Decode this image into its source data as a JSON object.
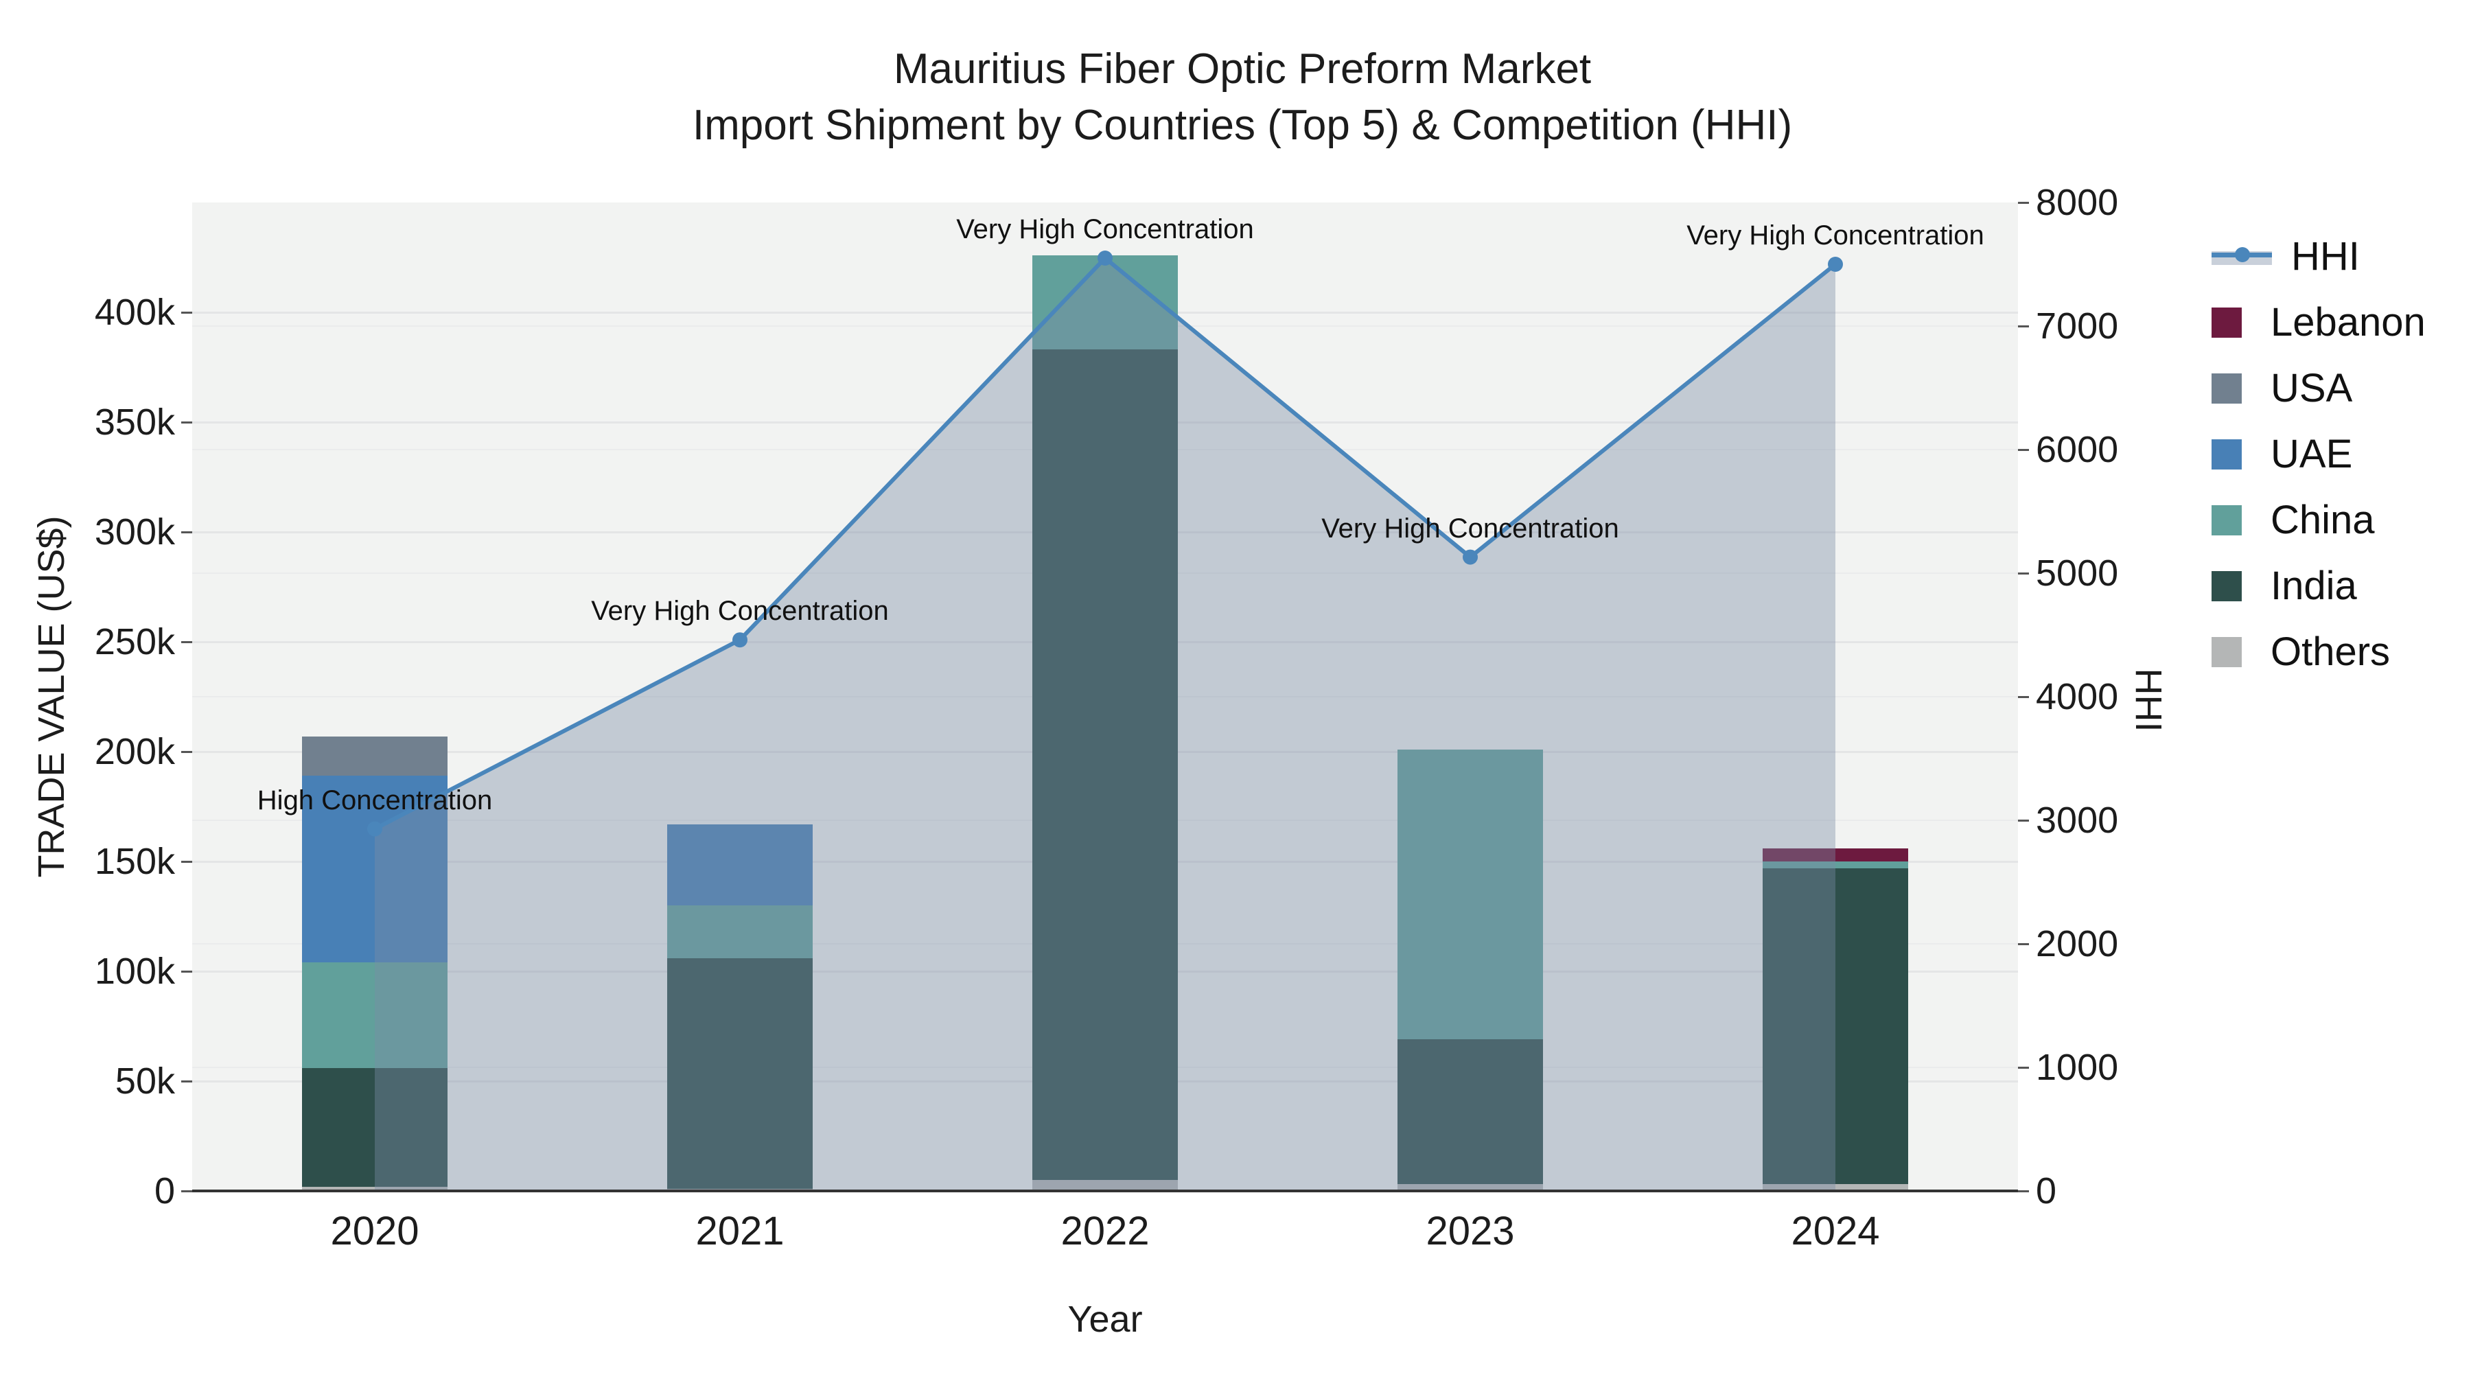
{
  "title": {
    "line1": "Mauritius Fiber Optic Preform Market",
    "line2": "Import Shipment by Countries (Top 5) & Competition (HHI)"
  },
  "axes": {
    "x": {
      "title": "Year"
    },
    "y_left": {
      "title": "TRADE VALUE (US$)",
      "tick_values_k": [
        0,
        50,
        100,
        150,
        200,
        250,
        300,
        350,
        400
      ],
      "tick_labels": [
        "0",
        "50k",
        "100k",
        "150k",
        "200k",
        "250k",
        "300k",
        "350k",
        "400k"
      ]
    },
    "y_right": {
      "title": "HHI",
      "tick_values": [
        0,
        1000,
        2000,
        3000,
        4000,
        5000,
        6000,
        7000,
        8000
      ],
      "tick_labels": [
        "0",
        "1000",
        "2000",
        "3000",
        "4000",
        "5000",
        "6000",
        "7000",
        "8000"
      ]
    }
  },
  "chart_data": {
    "type": "combo: stacked-bar + line",
    "bar_unit": "thousand US$ (trade value)",
    "categories": [
      "2020",
      "2021",
      "2022",
      "2023",
      "2024"
    ],
    "bar_series": [
      {
        "name": "Others",
        "color": "#b4b6b6",
        "values_k_usd": [
          2,
          1,
          5,
          3,
          3
        ]
      },
      {
        "name": "India",
        "color": "#2e4f4b",
        "values_k_usd": [
          54,
          105,
          378,
          66,
          144
        ]
      },
      {
        "name": "China",
        "color": "#61a09b",
        "values_k_usd": [
          48,
          24,
          43,
          132,
          3
        ]
      },
      {
        "name": "UAE",
        "color": "#4880b6",
        "values_k_usd": [
          85,
          37,
          0,
          0,
          0
        ]
      },
      {
        "name": "USA",
        "color": "#71808f",
        "values_k_usd": [
          18,
          0,
          0,
          0,
          0
        ]
      },
      {
        "name": "Lebanon",
        "color": "#6d1a3f",
        "values_k_usd": [
          0,
          0,
          0,
          0,
          6
        ]
      }
    ],
    "bar_totals_k_usd": [
      207,
      167,
      426,
      201,
      156
    ],
    "line_series": {
      "name": "HHI",
      "axis": "right",
      "color": "#4a86bb",
      "area_fill": "rgba(122,140,164,0.40)",
      "values": [
        2930,
        4460,
        7550,
        5130,
        7500
      ]
    },
    "annotations": [
      {
        "category": "2020",
        "text": "High Concentration"
      },
      {
        "category": "2021",
        "text": "Very High Concentration"
      },
      {
        "category": "2022",
        "text": "Very High Concentration"
      },
      {
        "category": "2023",
        "text": "Very High Concentration"
      },
      {
        "category": "2024",
        "text": "Very High Concentration"
      }
    ],
    "y_left_range_k": [
      0,
      450
    ],
    "y_right_range": [
      0,
      8000
    ],
    "grid": true,
    "legend_position": "right"
  },
  "legend": {
    "items": [
      {
        "label": "HHI",
        "type": "line",
        "color": "#4a86bb"
      },
      {
        "label": "Lebanon",
        "type": "swatch",
        "color": "#6d1a3f"
      },
      {
        "label": "USA",
        "type": "swatch",
        "color": "#71808f"
      },
      {
        "label": "UAE",
        "type": "swatch",
        "color": "#4880b6"
      },
      {
        "label": "China",
        "type": "swatch",
        "color": "#61a09b"
      },
      {
        "label": "India",
        "type": "swatch",
        "color": "#2e4f4b"
      },
      {
        "label": "Others",
        "type": "swatch",
        "color": "#b4b6b6"
      }
    ]
  },
  "colors": {
    "plot_bg": "#f2f3f2",
    "grid": "#e4e5e6",
    "axis_line": "#333333",
    "text": "#1c1c1c"
  }
}
